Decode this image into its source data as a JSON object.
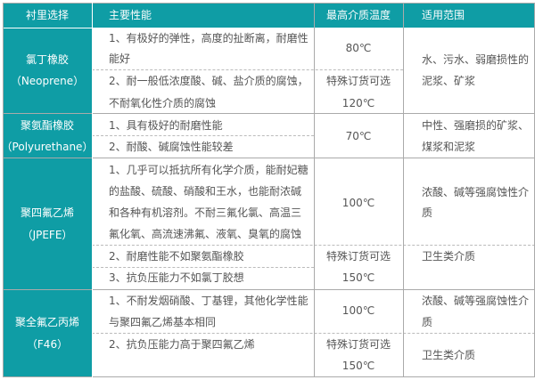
{
  "colors": {
    "header_bg": "#0f9da5",
    "first_col_bg": "#0f9da5",
    "border": "#aaaaaa",
    "text": "#555555"
  },
  "header": [
    "衬里选择",
    "主要性能",
    "最高介质温度",
    "适用范围"
  ],
  "rows": [
    {
      "name": "氯丁橡胶",
      "code": "（Neoprene）",
      "perf": [
        "1、有极好的弹性，高度的扯断离，耐磨性",
        "能好",
        "2、耐一般低浓度酸、碱、盐介质的腐蚀，",
        "不耐氧化性介质的腐蚀"
      ],
      "temp": [
        "80℃",
        "特殊订货可选",
        "120℃"
      ],
      "scope": [
        "水、污水、弱磨损性的",
        "泥浆、矿浆"
      ]
    },
    {
      "name": "聚氨酯橡胶",
      "code": "（Polyurethane）",
      "perf": [
        "1、具有极好的耐磨性能",
        "2、耐酸、碱腐蚀性能较差"
      ],
      "temp": [
        "70℃"
      ],
      "scope": [
        "中性、强磨损的矿浆、",
        "煤浆和泥浆"
      ]
    },
    {
      "name": "聚四氟乙烯",
      "code": "（JPEFE）",
      "perf": [
        "1、几乎可以抵抗所有化学介质，能耐妃糖",
        "的盐酸、硫酸、硝酸和王水，也能耐浓碱",
        "和各种有机溶剂。不耐三氟化氯、高温三",
        "氟化氧、高流速沸氟、液氧、臭氧的腐蚀",
        "2、耐磨性能不如聚氨酯橡胶",
        "3、抗负压能力不如氯丁胶想"
      ],
      "temp": [
        "100℃",
        "特殊订货可选",
        "150℃"
      ],
      "scope": [
        "浓酸、碱等强腐蚀性介",
        "质",
        "卫生类介质"
      ]
    },
    {
      "name": "聚全氟乙丙烯",
      "code": "（F46）",
      "perf": [
        "1、不耐发烟硝酸、丁基锂，其他化学性能",
        "与聚四氟乙烯基本相同",
        "2、抗负压能力高于聚四氟乙烯"
      ],
      "temp": [
        "100℃",
        "特殊订货可选",
        "150℃"
      ],
      "scope": [
        "浓酸、碱等强腐蚀性介",
        "质",
        "卫生类介质"
      ]
    }
  ]
}
